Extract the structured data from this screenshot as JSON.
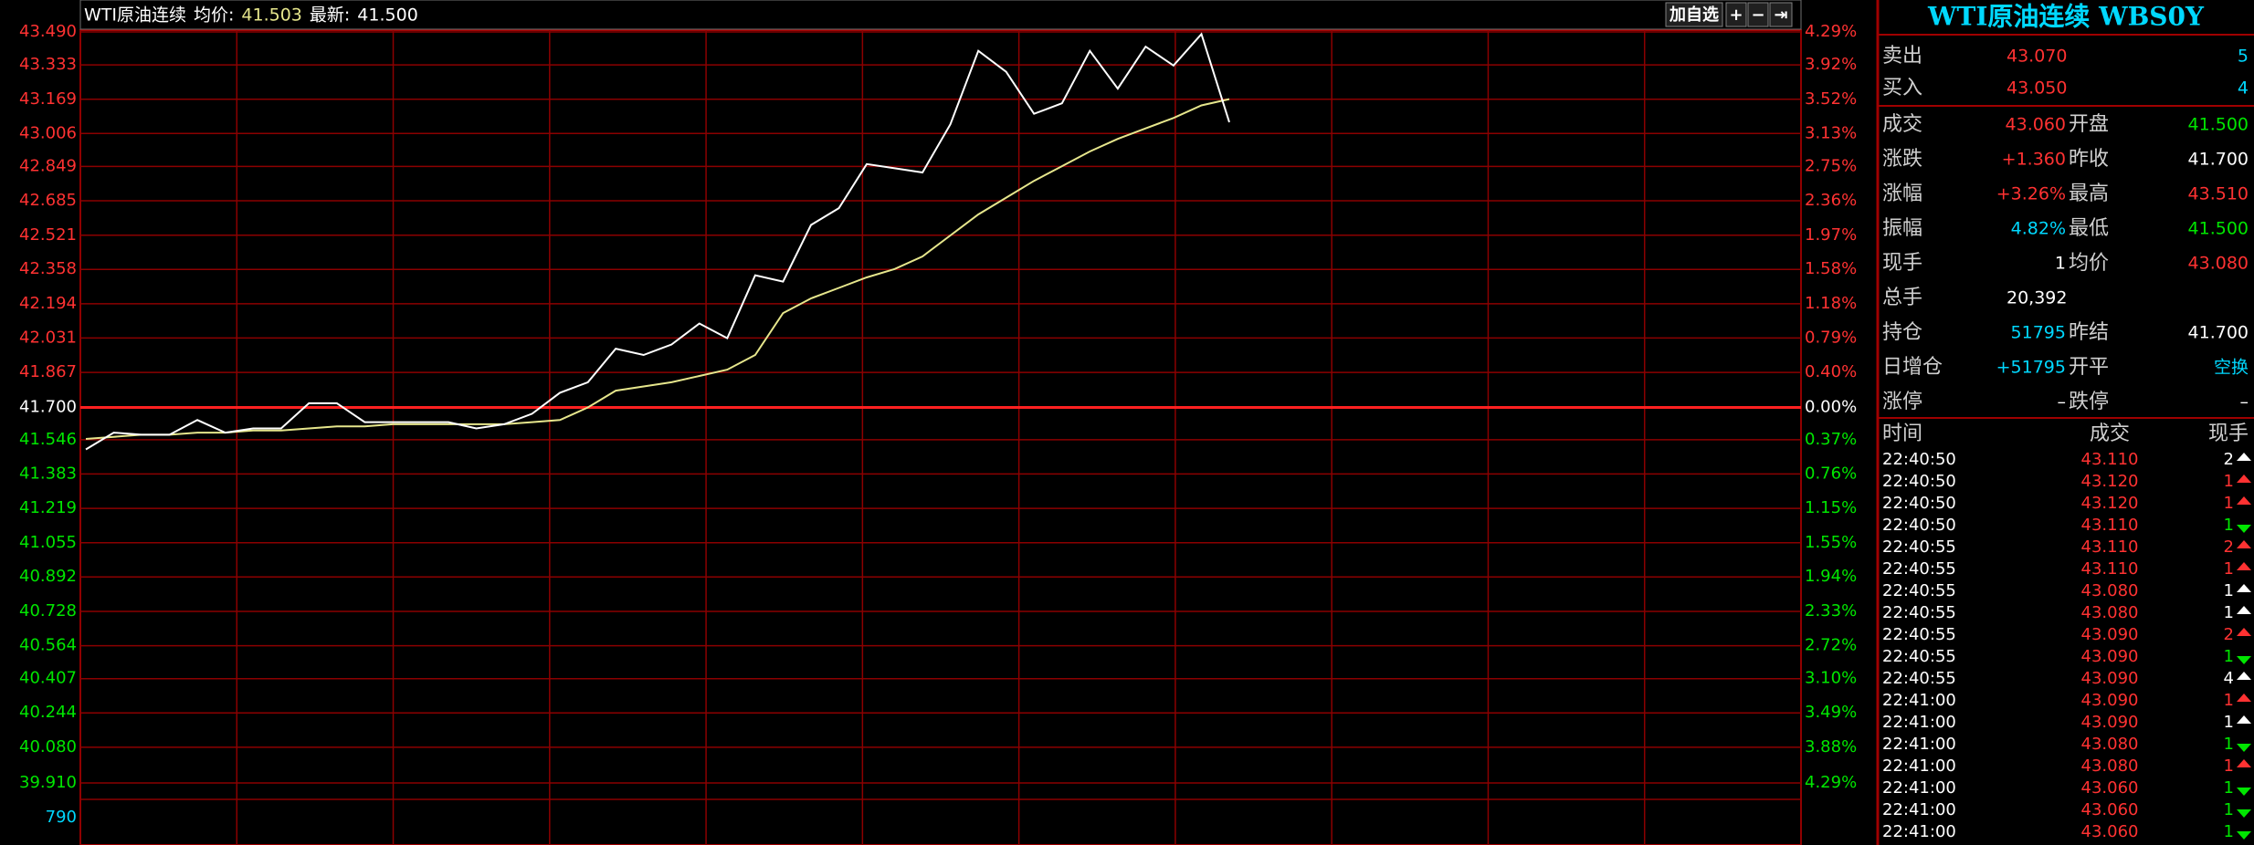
{
  "header": {
    "name": "WTI原油连续",
    "avg_label": "均价:",
    "avg": "41.503",
    "last_label": "最新:",
    "last": "41.500",
    "buttons": [
      "加自选",
      "+",
      "−",
      "⇥"
    ]
  },
  "chart": {
    "type": "line",
    "ylim": [
      39.91,
      43.49
    ],
    "yticks": [
      {
        "value": 43.49,
        "label": "43.490"
      },
      43.333,
      43.169,
      43.006,
      42.849,
      42.685,
      42.521,
      42.358,
      42.194,
      42.031,
      41.867,
      {
        "value": 41.7,
        "label": "41.700"
      },
      41.546,
      41.383,
      41.219,
      41.055,
      40.892,
      40.728,
      40.564,
      40.407,
      40.244,
      {
        "value": 40.08,
        "label": "40.080"
      },
      {
        "value": 39.91,
        "label": "39.910"
      }
    ],
    "pct_labels": [
      "4.29%",
      "3.92%",
      "3.52%",
      "3.13%",
      "2.75%",
      "2.36%",
      "1.97%",
      "1.58%",
      "1.18%",
      "0.79%",
      "0.40%",
      "0.00%",
      "0.37%",
      "0.76%",
      "1.15%",
      "1.55%",
      "1.94%",
      "2.33%",
      "2.72%",
      "3.10%",
      "3.49%",
      "3.88%",
      "4.29%"
    ],
    "volume_label": "790",
    "series": [
      {
        "color": "#ffffff",
        "values": [
          41.5,
          41.58,
          41.57,
          41.57,
          41.64,
          41.58,
          41.6,
          41.6,
          41.72,
          41.72,
          41.63,
          41.63,
          41.63,
          41.63,
          41.6,
          41.62,
          41.67,
          41.77,
          41.82,
          41.98,
          41.95,
          42.0,
          42.1,
          42.03,
          42.33,
          42.3,
          42.57,
          42.65,
          42.86,
          42.84,
          42.82,
          43.05,
          43.4,
          43.3,
          43.1,
          43.15,
          43.4,
          43.22,
          43.42,
          43.33,
          43.48,
          43.06
        ]
      },
      {
        "color": "#e6e68c",
        "values": [
          41.55,
          41.56,
          41.57,
          41.57,
          41.58,
          41.58,
          41.59,
          41.59,
          41.6,
          41.61,
          41.61,
          41.62,
          41.62,
          41.62,
          41.62,
          41.62,
          41.63,
          41.64,
          41.7,
          41.78,
          41.8,
          41.82,
          41.85,
          41.88,
          41.95,
          42.15,
          42.22,
          42.27,
          42.32,
          42.36,
          42.42,
          42.52,
          42.62,
          42.7,
          42.78,
          42.85,
          42.92,
          42.98,
          43.03,
          43.08,
          43.14,
          43.17
        ]
      }
    ]
  },
  "panel": {
    "title": "WTI原油连续 WBS0Y",
    "book": [
      {
        "label": "卖出",
        "price": "43.070",
        "qty": "5"
      },
      {
        "label": "买入",
        "price": "43.050",
        "qty": "4"
      }
    ],
    "quote": [
      {
        "label": "成交",
        "value": "43.060",
        "color": "#ff3232",
        "label2": "开盘",
        "value2": "41.500",
        "color2": "#00e600"
      },
      {
        "label": "涨跌",
        "value": "+1.360",
        "color": "#ff3232",
        "label2": "昨收",
        "value2": "41.700",
        "color2": "#ffffff"
      },
      {
        "label": "涨幅",
        "value": "+3.26%",
        "color": "#ff3232",
        "label2": "最高",
        "value2": "43.510",
        "color2": "#ff3232"
      },
      {
        "label": "振幅",
        "value": "4.82%",
        "color": "#00d8ff",
        "label2": "最低",
        "value2": "41.500",
        "color2": "#00e600"
      },
      {
        "label": "现手",
        "value": "1",
        "color": "#ffffff",
        "label2": "均价",
        "value2": "43.080",
        "color2": "#ff3232"
      },
      {
        "label": "总手",
        "value": "20,392",
        "color": "#ffffff"
      },
      {
        "label": "持仓",
        "value": "51795",
        "color": "#00d8ff",
        "label2": "昨结",
        "value2": "41.700",
        "color2": "#ffffff"
      },
      {
        "label": "日增仓",
        "value": "+51795",
        "color": "#00d8ff",
        "label2": "开平",
        "value2": "空换",
        "color2": "#00d8ff"
      },
      {
        "label": "涨停",
        "value": "–",
        "color": "#ffffff",
        "label2": "跌停",
        "value2": "–",
        "color2": "#ffffff"
      }
    ],
    "trade_headers": [
      "时间",
      "成交",
      "现手"
    ],
    "trades": [
      {
        "time": "22:40:50",
        "price": "43.110",
        "qty": "2",
        "color": "#ffffff",
        "arrow": "up"
      },
      {
        "time": "22:40:50",
        "price": "43.120",
        "qty": "1",
        "color": "#ff3232",
        "arrow": "up"
      },
      {
        "time": "22:40:50",
        "price": "43.120",
        "qty": "1",
        "color": "#ff3232",
        "arrow": "up"
      },
      {
        "time": "22:40:50",
        "price": "43.110",
        "qty": "1",
        "color": "#00e600",
        "arrow": "down"
      },
      {
        "time": "22:40:55",
        "price": "43.110",
        "qty": "2",
        "color": "#ff3232",
        "arrow": "up"
      },
      {
        "time": "22:40:55",
        "price": "43.110",
        "qty": "1",
        "color": "#ff3232",
        "arrow": "up"
      },
      {
        "time": "22:40:55",
        "price": "43.080",
        "qty": "1",
        "color": "#ffffff",
        "arrow": "up"
      },
      {
        "time": "22:40:55",
        "price": "43.080",
        "qty": "1",
        "color": "#ffffff",
        "arrow": "up"
      },
      {
        "time": "22:40:55",
        "price": "43.090",
        "qty": "2",
        "color": "#ff3232",
        "arrow": "up"
      },
      {
        "time": "22:40:55",
        "price": "43.090",
        "qty": "1",
        "color": "#00e600",
        "arrow": "down"
      },
      {
        "time": "22:40:55",
        "price": "43.090",
        "qty": "4",
        "color": "#ffffff",
        "arrow": "up"
      },
      {
        "time": "22:41:00",
        "price": "43.090",
        "qty": "1",
        "color": "#ff3232",
        "arrow": "up"
      },
      {
        "time": "22:41:00",
        "price": "43.090",
        "qty": "1",
        "color": "#ffffff",
        "arrow": "up"
      },
      {
        "time": "22:41:00",
        "price": "43.080",
        "qty": "1",
        "color": "#00e600",
        "arrow": "down"
      },
      {
        "time": "22:41:00",
        "price": "43.080",
        "qty": "1",
        "color": "#ff3232",
        "arrow": "up"
      },
      {
        "time": "22:41:00",
        "price": "43.060",
        "qty": "1",
        "color": "#00e600",
        "arrow": "down"
      },
      {
        "time": "22:41:00",
        "price": "43.060",
        "qty": "1",
        "color": "#00e600",
        "arrow": "down"
      },
      {
        "time": "22:41:00",
        "price": "43.060",
        "qty": "1",
        "color": "#00e600",
        "arrow": "down"
      }
    ]
  }
}
